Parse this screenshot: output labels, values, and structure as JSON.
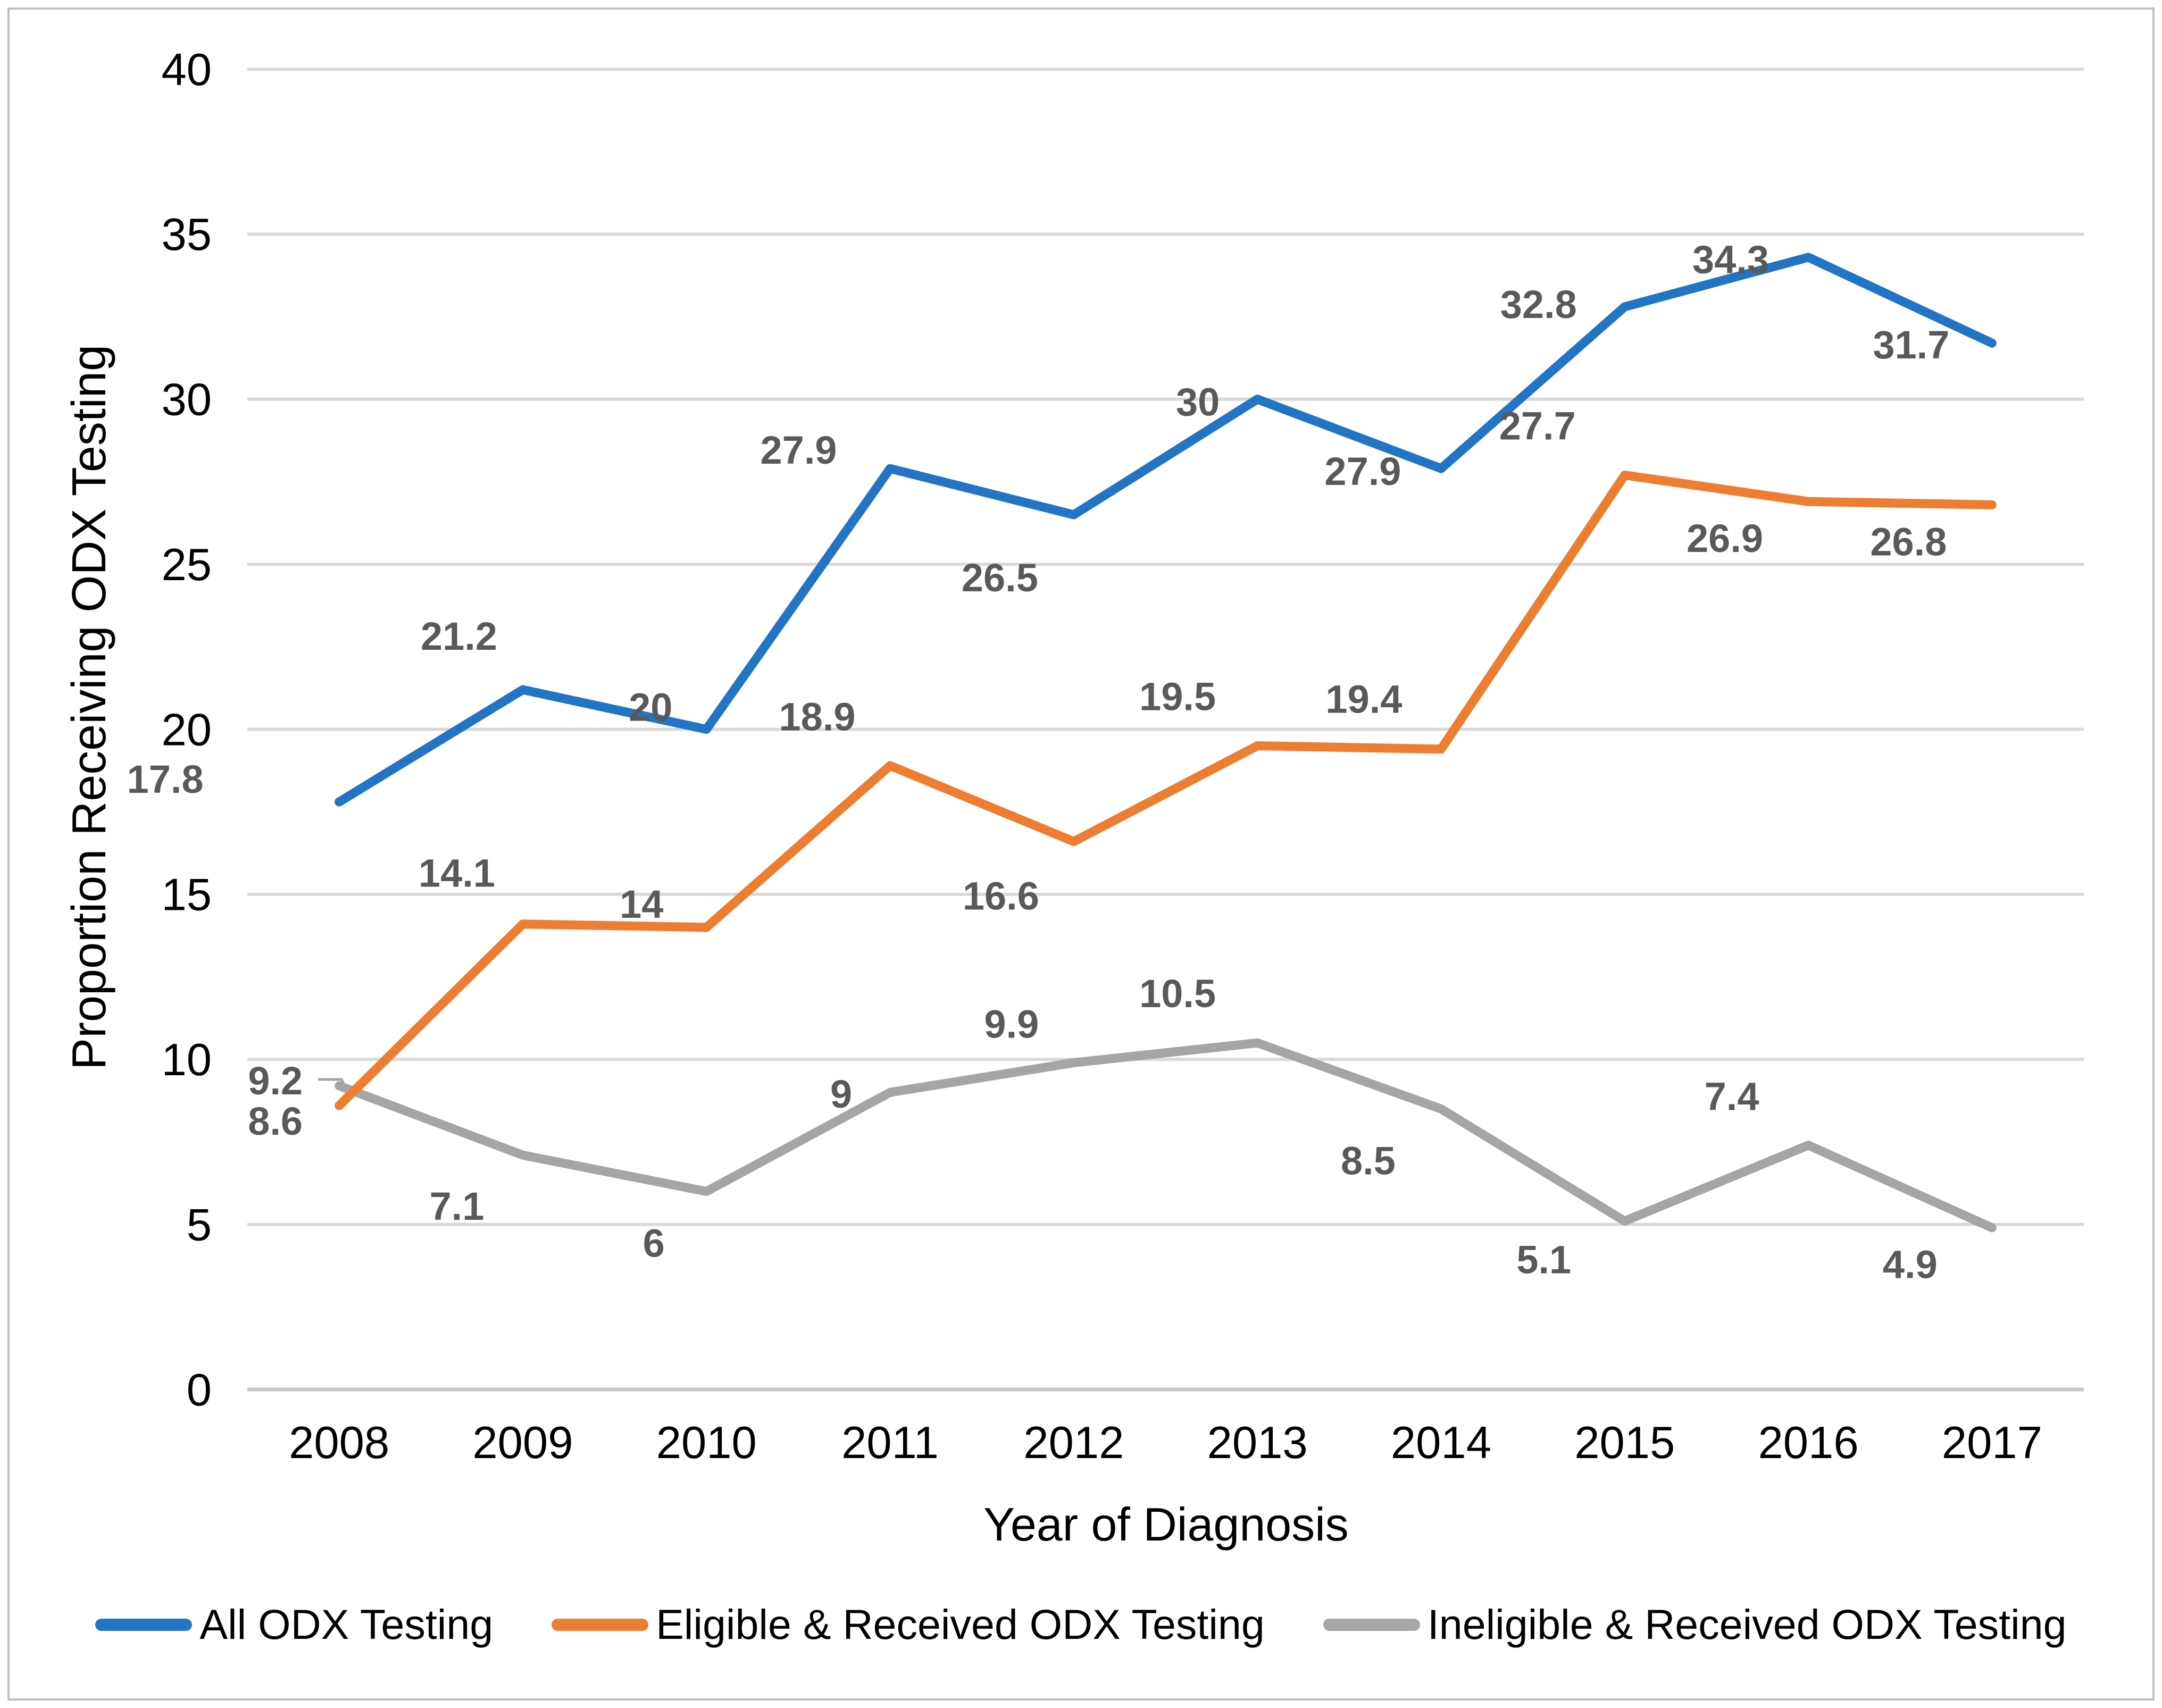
{
  "chart_data": {
    "type": "line",
    "title": "",
    "categories": [
      "2008",
      "2009",
      "2010",
      "2011",
      "2012",
      "2013",
      "2014",
      "2015",
      "2016",
      "2017"
    ],
    "series": [
      {
        "name": "All ODX Testing",
        "color": "#2274C5",
        "values": [
          17.8,
          21.2,
          20,
          27.9,
          26.5,
          30,
          27.9,
          32.8,
          34.3,
          31.7
        ]
      },
      {
        "name": "Eligible & Received ODX Testing",
        "color": "#ED7D31",
        "values": [
          8.6,
          14.1,
          14,
          18.9,
          16.6,
          19.5,
          19.4,
          27.7,
          26.9,
          26.8
        ]
      },
      {
        "name": "Ineligible & Received ODX Testing",
        "color": "#A5A5A5",
        "values": [
          9.2,
          7.1,
          6,
          9,
          9.9,
          10.5,
          8.5,
          5.1,
          7.4,
          4.9
        ]
      }
    ],
    "xlabel": "Year of Diagnosis",
    "ylabel": "Proportion Receiving ODX Testing",
    "ylim": [
      0,
      40
    ],
    "ytick_step": 5,
    "yticks": [
      0,
      5,
      10,
      15,
      20,
      25,
      30,
      35,
      40
    ],
    "grid": "horizontal",
    "legend_position": "bottom",
    "style": {
      "grid_color": "#D9D9D9",
      "axis_line_color": "#C9C9C9",
      "tick_label_color": "#000000",
      "data_label_color": "#595959",
      "border_color": "#BFBFBF"
    },
    "label_offsets": [
      [
        [
          -327,
          -43
        ],
        [
          -120,
          -101
        ],
        [
          -105,
          -42
        ],
        [
          -172,
          -35
        ],
        [
          -139,
          118
        ],
        [
          -112,
          5
        ],
        [
          -147,
          5
        ],
        [
          -162,
          -5
        ],
        [
          -146,
          4
        ],
        [
          -152,
          3
        ]
      ],
      [
        [
          -120,
          29
        ],
        [
          -124,
          -96
        ],
        [
          -122,
          -44
        ],
        [
          -137,
          -92
        ],
        [
          -137,
          102
        ],
        [
          -150,
          -93
        ],
        [
          -145,
          -94
        ],
        [
          -164,
          -93
        ],
        [
          -157,
          69
        ],
        [
          -157,
          69
        ]
      ],
      [
        [
          -120,
          -10
        ],
        [
          -124,
          96
        ],
        [
          -99,
          97
        ],
        [
          -92,
          3
        ],
        [
          -117,
          -73
        ],
        [
          -150,
          -93
        ],
        [
          -137,
          97
        ],
        [
          -152,
          72
        ],
        [
          -144,
          -92
        ],
        [
          -154,
          69
        ]
      ]
    ],
    "leader_line": {
      "series": 2,
      "point": 0,
      "path": [
        [
          598,
          2030
        ],
        [
          642,
          2030
        ],
        [
          658,
          2060
        ]
      ]
    }
  }
}
